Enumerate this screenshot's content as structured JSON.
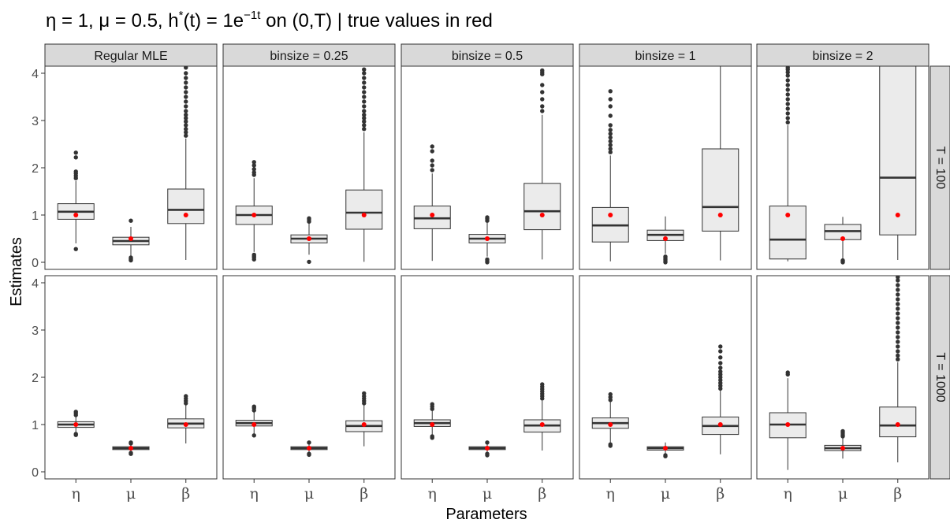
{
  "chart_data": {
    "type": "boxplot",
    "title": "η = 1, μ = 0.5, h*(t) = 1e⁻¹ᵗ on (0,T) | true values in red",
    "title_parts": {
      "pre": "η = 1, μ = 0.5, h",
      "sup1": "*",
      "mid": "(t) = 1e",
      "sup2": "−1t",
      "post": " on (0,T) | true values in red"
    },
    "xlabel": "Parameters",
    "ylabel": "Estimates",
    "ylim": [
      -0.15,
      4.15
    ],
    "yticks": [
      0,
      1,
      2,
      3,
      4
    ],
    "params": [
      "η",
      "μ",
      "β"
    ],
    "columns": [
      "Regular MLE",
      "binsize = 0.25",
      "binsize = 0.5",
      "binsize = 1",
      "binsize = 2"
    ],
    "rows": [
      "T = 100",
      "T = 1000"
    ],
    "true_values": [
      1,
      0.5,
      1
    ],
    "colors": {
      "box_fill": "#ebebeb",
      "true_point": "#ff0000",
      "outlier": "#333333",
      "strip": "#d9d9d9"
    },
    "panels": [
      [
        [
          {
            "q1": 0.91,
            "med": 1.07,
            "q3": 1.24,
            "lo": 0.4,
            "hi": 1.72,
            "out": [
              0.28,
              1.78,
              1.83,
              1.88,
              1.92,
              2.22,
              2.32
            ]
          },
          {
            "q1": 0.37,
            "med": 0.45,
            "q3": 0.53,
            "lo": 0.12,
            "hi": 0.75,
            "out": [
              0.04,
              0.06,
              0.08,
              0.1,
              0.88
            ]
          },
          {
            "q1": 0.82,
            "med": 1.11,
            "q3": 1.55,
            "lo": 0.05,
            "hi": 2.62,
            "out": [
              2.68,
              2.75,
              2.82,
              2.9,
              2.98,
              3.05,
              3.12,
              3.2,
              3.3,
              3.4,
              3.5,
              3.6,
              3.7,
              3.8,
              3.9,
              4.0,
              4.12
            ]
          }
        ],
        [
          {
            "q1": 0.8,
            "med": 1.0,
            "q3": 1.19,
            "lo": 0.22,
            "hi": 1.78,
            "out": [
              0.06,
              0.1,
              0.13,
              0.16,
              1.85,
              1.9,
              1.97,
              2.05,
              2.12
            ]
          },
          {
            "q1": 0.41,
            "med": 0.5,
            "q3": 0.58,
            "lo": 0.16,
            "hi": 0.82,
            "out": [
              0.01,
              0.86,
              0.9,
              0.93
            ]
          },
          {
            "q1": 0.7,
            "med": 1.05,
            "q3": 1.53,
            "lo": 0.01,
            "hi": 2.75,
            "out": [
              2.82,
              2.9,
              2.98,
              3.05,
              3.12,
              3.2,
              3.3,
              3.4,
              3.5,
              3.6,
              3.7,
              3.8,
              3.9,
              4.0,
              4.08
            ]
          }
        ],
        [
          {
            "q1": 0.71,
            "med": 0.93,
            "q3": 1.19,
            "lo": 0.03,
            "hi": 1.88,
            "out": [
              1.95,
              2.05,
              2.15,
              2.35,
              2.45
            ]
          },
          {
            "q1": 0.41,
            "med": 0.5,
            "q3": 0.59,
            "lo": 0.12,
            "hi": 0.84,
            "out": [
              0.0,
              0.03,
              0.06,
              0.88,
              0.92,
              0.95
            ]
          },
          {
            "q1": 0.69,
            "med": 1.08,
            "q3": 1.67,
            "lo": 0.06,
            "hi": 3.12,
            "out": [
              3.2,
              3.3,
              3.45,
              3.6,
              3.75,
              3.98,
              4.02,
              4.06
            ]
          }
        ],
        [
          {
            "q1": 0.43,
            "med": 0.78,
            "q3": 1.16,
            "lo": 0.02,
            "hi": 2.26,
            "out": [
              2.33,
              2.4,
              2.48,
              2.56,
              2.64,
              2.72,
              2.8,
              2.9,
              3.1,
              3.3,
              3.45,
              3.62
            ]
          },
          {
            "q1": 0.46,
            "med": 0.58,
            "q3": 0.68,
            "lo": 0.18,
            "hi": 0.97,
            "out": [
              0.0,
              0.03,
              0.06,
              0.09,
              0.12
            ]
          },
          {
            "q1": 0.66,
            "med": 1.17,
            "q3": 2.4,
            "lo": 0.04,
            "hi": 4.2,
            "out": []
          }
        ],
        [
          {
            "q1": 0.07,
            "med": 0.48,
            "q3": 1.19,
            "lo": 0.02,
            "hi": 2.9,
            "out": [
              2.96,
              3.05,
              3.15,
              3.25,
              3.35,
              3.45,
              3.55,
              3.65,
              3.75,
              3.85,
              3.95,
              4.02,
              4.08,
              4.12
            ]
          },
          {
            "q1": 0.48,
            "med": 0.66,
            "q3": 0.8,
            "lo": 0.08,
            "hi": 0.96,
            "out": [
              0.0,
              0.02,
              0.04
            ]
          },
          {
            "q1": 0.58,
            "med": 1.79,
            "q3": 4.2,
            "lo": 0.05,
            "hi": 4.2,
            "out": []
          }
        ]
      ],
      [
        [
          {
            "q1": 0.94,
            "med": 1.0,
            "q3": 1.06,
            "lo": 0.83,
            "hi": 1.18,
            "out": [
              0.78,
              0.8,
              1.2,
              1.24,
              1.27
            ]
          },
          {
            "q1": 0.47,
            "med": 0.5,
            "q3": 0.53,
            "lo": 0.42,
            "hi": 0.58,
            "out": [
              0.38,
              0.4,
              0.6,
              0.62
            ]
          },
          {
            "q1": 0.93,
            "med": 1.02,
            "q3": 1.12,
            "lo": 0.6,
            "hi": 1.42,
            "out": [
              1.45,
              1.5,
              1.55,
              1.6
            ]
          }
        ],
        [
          {
            "q1": 0.97,
            "med": 1.03,
            "q3": 1.09,
            "lo": 0.8,
            "hi": 1.27,
            "out": [
              0.77,
              1.3,
              1.35,
              1.38
            ]
          },
          {
            "q1": 0.47,
            "med": 0.5,
            "q3": 0.53,
            "lo": 0.4,
            "hi": 0.59,
            "out": [
              0.36,
              0.38,
              0.62
            ]
          },
          {
            "q1": 0.85,
            "med": 0.97,
            "q3": 1.08,
            "lo": 0.54,
            "hi": 1.42,
            "out": [
              1.45,
              1.5,
              1.55,
              1.6,
              1.66
            ]
          }
        ],
        [
          {
            "q1": 0.96,
            "med": 1.03,
            "q3": 1.1,
            "lo": 0.78,
            "hi": 1.3,
            "out": [
              0.72,
              0.75,
              1.33,
              1.38,
              1.43
            ]
          },
          {
            "q1": 0.47,
            "med": 0.5,
            "q3": 0.53,
            "lo": 0.4,
            "hi": 0.59,
            "out": [
              0.35,
              0.38,
              0.62
            ]
          },
          {
            "q1": 0.84,
            "med": 0.98,
            "q3": 1.1,
            "lo": 0.45,
            "hi": 1.5,
            "out": [
              1.55,
              1.6,
              1.65,
              1.7,
              1.75,
              1.8,
              1.85
            ]
          }
        ],
        [
          {
            "q1": 0.92,
            "med": 1.03,
            "q3": 1.14,
            "lo": 0.6,
            "hi": 1.48,
            "out": [
              0.55,
              0.58,
              1.52,
              1.58,
              1.64
            ]
          },
          {
            "q1": 0.46,
            "med": 0.5,
            "q3": 0.53,
            "lo": 0.38,
            "hi": 0.62,
            "out": [
              0.33,
              0.35
            ]
          },
          {
            "q1": 0.79,
            "med": 0.97,
            "q3": 1.16,
            "lo": 0.37,
            "hi": 1.72,
            "out": [
              1.76,
              1.82,
              1.88,
              1.94,
              2.0,
              2.06,
              2.12,
              2.2,
              2.3,
              2.42,
              2.55,
              2.65
            ]
          }
        ],
        [
          {
            "q1": 0.72,
            "med": 1.0,
            "q3": 1.25,
            "lo": 0.04,
            "hi": 1.98,
            "out": [
              2.06,
              2.1
            ]
          },
          {
            "q1": 0.45,
            "med": 0.5,
            "q3": 0.56,
            "lo": 0.28,
            "hi": 0.72,
            "out": [
              0.75,
              0.78,
              0.82,
              0.86
            ]
          },
          {
            "q1": 0.74,
            "med": 0.98,
            "q3": 1.37,
            "lo": 0.2,
            "hi": 2.32,
            "out": [
              2.38,
              2.46,
              2.55,
              2.65,
              2.75,
              2.85,
              2.95,
              3.05,
              3.15,
              3.25,
              3.35,
              3.45,
              3.55,
              3.65,
              3.75,
              3.85,
              3.95,
              4.05,
              4.12
            ]
          }
        ]
      ]
    ]
  }
}
